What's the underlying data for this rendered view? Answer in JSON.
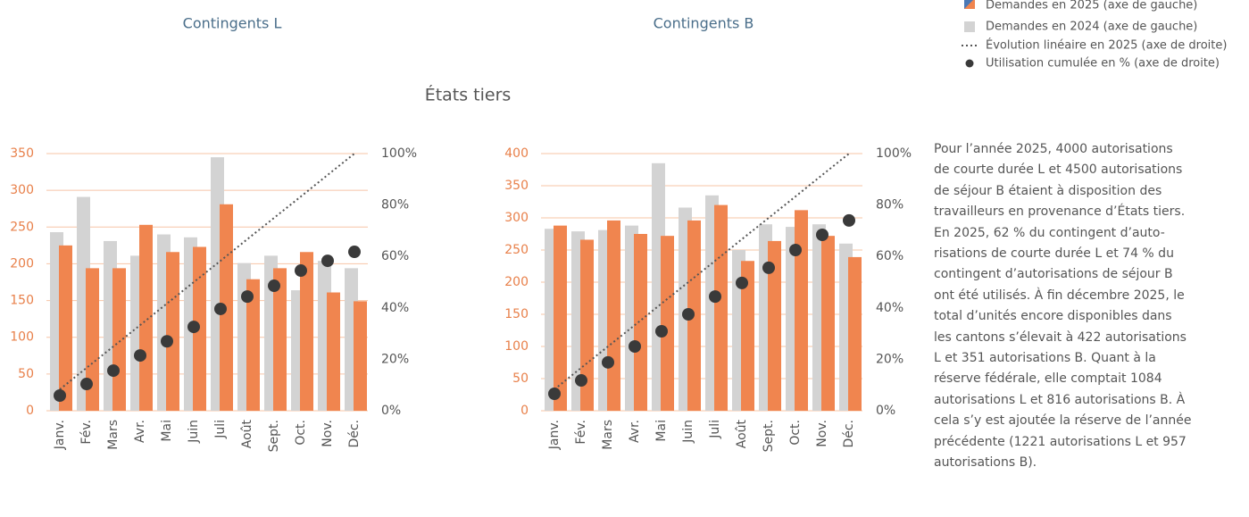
{
  "title": "États tiers",
  "legend": {
    "labels": [
      "Demandes en 2025 (axe de gauche)",
      "Demandes en 2024 (axe de gauche)",
      "Évolution linéaire en 2025 (axe de droite)",
      "Utilisation cumulée en % (axe de droite)"
    ]
  },
  "paragraph": [
    "Pour l’année 2025, 4000 autorisations",
    "de courte durée L et 4500 autorisations",
    "de séjour B étaient à disposition des",
    "travailleurs en provenance d’États tiers.",
    "En 2025, 62 % du contingent d’auto-",
    "risations de courte durée L et 74 % du",
    "contingent d’autorisations de séjour B",
    "ont été utilisés. À fin décembre 2025, le",
    "total d’unités encore disponibles dans",
    "les cantons s’élevait à 422 autorisations",
    "L et 351 autorisations B. Quant à la",
    "réserve fédérale, elle comptait 1084",
    "autorisations L et 816 autorisations B. À",
    "cela s’y est ajoutée la réserve de l’année",
    "précédente (1221 autorisations L et 957",
    "autorisations B)."
  ],
  "chart_data": [
    {
      "type": "bar",
      "title": "Contingents L",
      "categories": [
        "Janv.",
        "Fév.",
        "Mars",
        "Avr.",
        "Mai",
        "Juin",
        "Juli",
        "Août",
        "Sept.",
        "Oct.",
        "Nov.",
        "Déc."
      ],
      "series": [
        {
          "type": "bar",
          "color": "#d3d3d3",
          "values": [
            243,
            291,
            231,
            211,
            240,
            236,
            345,
            201,
            211,
            164,
            204,
            194
          ]
        },
        {
          "type": "bar",
          "color": "#f0854f",
          "values": [
            225,
            194,
            194,
            253,
            216,
            223,
            281,
            179,
            194,
            216,
            161,
            149
          ]
        },
        {
          "type": "line",
          "axis": "y2",
          "color": "#555555",
          "values": [
            8.3,
            16.7,
            25,
            33.3,
            41.7,
            50,
            58.3,
            66.7,
            75,
            83.3,
            91.7,
            100
          ]
        },
        {
          "type": "scatter",
          "axis": "y2",
          "color": "#3a3a3a",
          "values": [
            5.9,
            10.4,
            15.6,
            21.5,
            27,
            32.6,
            39.6,
            44.4,
            48.6,
            54.5,
            58.3,
            61.8
          ]
        }
      ],
      "ylim": [
        0,
        350
      ],
      "yticks": [
        0,
        50,
        100,
        150,
        200,
        250,
        300,
        350
      ],
      "y2lim": [
        0,
        100
      ],
      "y2ticks": [
        {
          "value": 0,
          "label": "0%"
        },
        {
          "value": 20,
          "label": "20%"
        },
        {
          "value": 40,
          "label": "40%"
        },
        {
          "value": 60,
          "label": "60%"
        },
        {
          "value": 80,
          "label": "80%"
        },
        {
          "value": 100,
          "label": "100%"
        }
      ],
      "grid": true
    },
    {
      "type": "bar",
      "title": "Contingents B",
      "categories": [
        "Janv.",
        "Fév.",
        "Mars",
        "Avr.",
        "Mai",
        "Juin",
        "Juli",
        "Août",
        "Sept.",
        "Oct.",
        "Nov.",
        "Déc."
      ],
      "series": [
        {
          "type": "bar",
          "color": "#d3d3d3",
          "values": [
            283,
            279,
            281,
            288,
            385,
            316,
            335,
            250,
            290,
            286,
            290,
            260
          ]
        },
        {
          "type": "bar",
          "color": "#f0854f",
          "values": [
            288,
            266,
            296,
            275,
            272,
            296,
            320,
            233,
            264,
            312,
            272,
            239
          ]
        },
        {
          "type": "line",
          "axis": "y2",
          "color": "#555555",
          "values": [
            8.3,
            16.7,
            25,
            33.3,
            41.7,
            50,
            58.3,
            66.7,
            75,
            83.3,
            91.7,
            100
          ]
        },
        {
          "type": "scatter",
          "axis": "y2",
          "color": "#3a3a3a",
          "values": [
            6.6,
            11.8,
            18.8,
            25,
            30.9,
            37.5,
            44.4,
            49.7,
            55.6,
            62.5,
            68.4,
            74
          ]
        }
      ],
      "ylim": [
        0,
        400
      ],
      "yticks": [
        0,
        50,
        100,
        150,
        200,
        250,
        300,
        350,
        400
      ],
      "y2lim": [
        0,
        100
      ],
      "y2ticks": [
        {
          "value": 0,
          "label": "0%"
        },
        {
          "value": 20,
          "label": "20%"
        },
        {
          "value": 40,
          "label": "40%"
        },
        {
          "value": 60,
          "label": "60%"
        },
        {
          "value": 80,
          "label": "80%"
        },
        {
          "value": 100,
          "label": "100%"
        }
      ],
      "grid": true
    }
  ]
}
